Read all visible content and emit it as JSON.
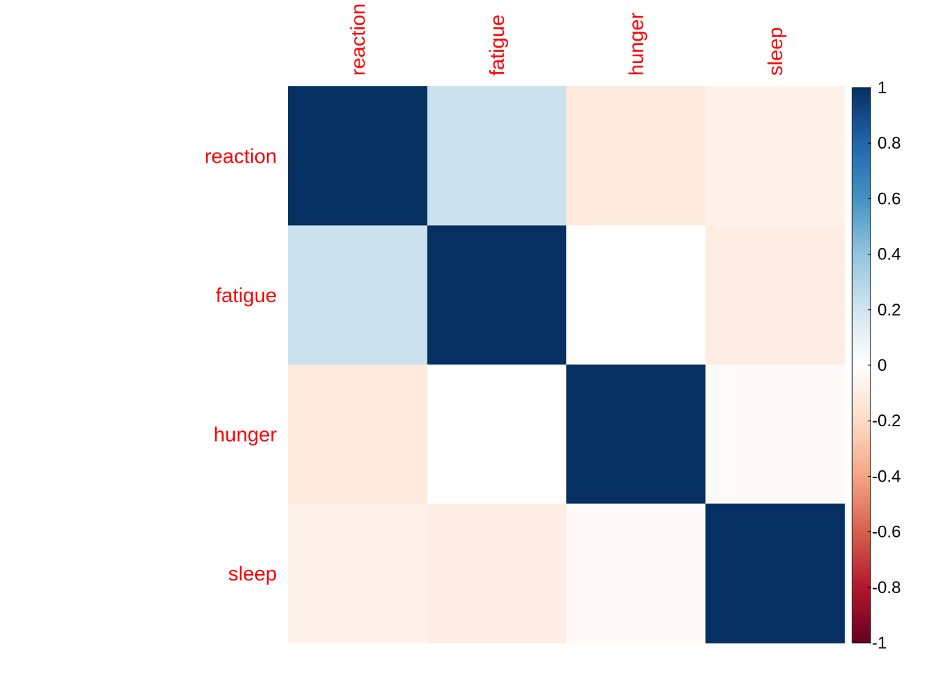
{
  "chart_data": {
    "type": "heatmap",
    "rows": [
      "reaction",
      "fatigue",
      "hunger",
      "sleep"
    ],
    "columns": [
      "reaction",
      "fatigue",
      "hunger",
      "sleep"
    ],
    "values": [
      [
        1.0,
        0.22,
        -0.12,
        -0.07
      ],
      [
        0.22,
        1.0,
        0.0,
        -0.1
      ],
      [
        -0.12,
        0.0,
        1.0,
        -0.03
      ],
      [
        -0.07,
        -0.1,
        -0.03,
        1.0
      ]
    ],
    "colorbar": {
      "range": [
        -1,
        1
      ],
      "ticks": [
        "1",
        "0.8",
        "0.6",
        "0.4",
        "0.2",
        "0",
        "-0.2",
        "-0.4",
        "-0.6",
        "-0.8",
        "-1"
      ],
      "colors": [
        "#67001F",
        "#B2182B",
        "#D6604D",
        "#F4A582",
        "#FDDBC7",
        "#FFFFFF",
        "#D1E5F0",
        "#92C5DE",
        "#4393C3",
        "#2166AC",
        "#053061"
      ]
    },
    "label_color": "#FF0000"
  }
}
